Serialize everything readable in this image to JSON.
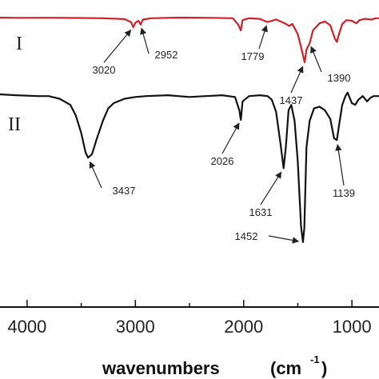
{
  "chart_data": {
    "type": "line",
    "title": "",
    "xlabel": "wavenumbers",
    "xlabel_unit": "(cm",
    "xlabel_unit_sup": "-1",
    "xlabel_unit_close": ")",
    "xlim": [
      4250,
      750
    ],
    "x_reversed": true,
    "y_ticks_shown": false,
    "x_ticks": [
      4000,
      3000,
      2000,
      1000
    ],
    "x_tick_labels": [
      "4000",
      "3000",
      "2000",
      "1000"
    ],
    "series": [
      {
        "name": "I",
        "color": "#d0202a",
        "baseline": 0.0,
        "points": [
          [
            4250,
            0.0
          ],
          [
            4100,
            -0.02
          ],
          [
            3800,
            -0.01
          ],
          [
            3500,
            -0.03
          ],
          [
            3300,
            -0.05
          ],
          [
            3100,
            -0.12
          ],
          [
            3040,
            -0.35
          ],
          [
            3020,
            -0.75
          ],
          [
            3000,
            -0.4
          ],
          [
            2970,
            -0.25
          ],
          [
            2952,
            -0.55
          ],
          [
            2930,
            -0.15
          ],
          [
            2850,
            -0.05
          ],
          [
            2600,
            0.0
          ],
          [
            2300,
            -0.02
          ],
          [
            2100,
            -0.05
          ],
          [
            2050,
            -0.55
          ],
          [
            2026,
            -1.0
          ],
          [
            2010,
            -0.2
          ],
          [
            1950,
            -0.05
          ],
          [
            1850,
            -0.1
          ],
          [
            1779,
            -0.35
          ],
          [
            1740,
            -0.25
          ],
          [
            1700,
            -0.15
          ],
          [
            1620,
            -0.45
          ],
          [
            1580,
            -0.65
          ],
          [
            1550,
            -0.5
          ],
          [
            1500,
            -1.3
          ],
          [
            1470,
            -2.3
          ],
          [
            1437,
            -3.5
          ],
          [
            1420,
            -2.5
          ],
          [
            1390,
            -2.0
          ],
          [
            1360,
            -1.0
          ],
          [
            1300,
            -0.45
          ],
          [
            1250,
            -0.3
          ],
          [
            1200,
            -0.6
          ],
          [
            1160,
            -1.6
          ],
          [
            1140,
            -1.9
          ],
          [
            1120,
            -1.3
          ],
          [
            1090,
            -0.5
          ],
          [
            1050,
            -0.2
          ],
          [
            1000,
            -0.25
          ],
          [
            960,
            -0.45
          ],
          [
            930,
            -0.2
          ],
          [
            880,
            -0.1
          ],
          [
            820,
            -0.15
          ],
          [
            780,
            -0.05
          ],
          [
            750,
            -0.05
          ]
        ]
      },
      {
        "name": "II",
        "color": "#111111",
        "baseline": 0.0,
        "points": [
          [
            4250,
            0.0
          ],
          [
            4100,
            -0.05
          ],
          [
            3900,
            -0.1
          ],
          [
            3800,
            -0.1
          ],
          [
            3700,
            -0.25
          ],
          [
            3600,
            -0.6
          ],
          [
            3550,
            -1.2
          ],
          [
            3500,
            -2.2
          ],
          [
            3460,
            -3.3
          ],
          [
            3437,
            -3.6
          ],
          [
            3400,
            -3.4
          ],
          [
            3360,
            -2.6
          ],
          [
            3300,
            -1.5
          ],
          [
            3250,
            -0.8
          ],
          [
            3200,
            -0.5
          ],
          [
            3100,
            -0.25
          ],
          [
            3000,
            -0.15
          ],
          [
            2900,
            -0.1
          ],
          [
            2700,
            -0.05
          ],
          [
            2500,
            -0.15
          ],
          [
            2350,
            -0.1
          ],
          [
            2200,
            -0.05
          ],
          [
            2080,
            -0.15
          ],
          [
            2040,
            -0.9
          ],
          [
            2026,
            -1.45
          ],
          [
            2010,
            -0.4
          ],
          [
            1950,
            -0.1
          ],
          [
            1850,
            -0.05
          ],
          [
            1779,
            -0.1
          ],
          [
            1740,
            -0.3
          ],
          [
            1700,
            -1.0
          ],
          [
            1660,
            -2.8
          ],
          [
            1631,
            -4.2
          ],
          [
            1610,
            -3.0
          ],
          [
            1585,
            -0.9
          ],
          [
            1560,
            -0.6
          ],
          [
            1530,
            -1.5
          ],
          [
            1500,
            -3.8
          ],
          [
            1470,
            -7.5
          ],
          [
            1452,
            -8.4
          ],
          [
            1440,
            -7.6
          ],
          [
            1420,
            -3.0
          ],
          [
            1390,
            -1.5
          ],
          [
            1350,
            -0.8
          ],
          [
            1300,
            -0.7
          ],
          [
            1250,
            -0.9
          ],
          [
            1200,
            -1.4
          ],
          [
            1165,
            -2.5
          ],
          [
            1139,
            -2.6
          ],
          [
            1120,
            -1.8
          ],
          [
            1090,
            -0.6
          ],
          [
            1060,
            -0.1
          ],
          [
            1040,
            0.1
          ],
          [
            1000,
            -0.5
          ],
          [
            970,
            -0.6
          ],
          [
            940,
            -0.3
          ],
          [
            900,
            -0.1
          ],
          [
            860,
            -0.4
          ],
          [
            830,
            -0.2
          ],
          [
            800,
            -0.1
          ],
          [
            750,
            -0.1
          ]
        ]
      }
    ],
    "annotations": [
      {
        "series": "I",
        "text": "3020",
        "x": 3020
      },
      {
        "series": "I",
        "text": "2952",
        "x": 2952
      },
      {
        "series": "I",
        "text": "1779",
        "x": 1779
      },
      {
        "series": "I",
        "text": "1437",
        "x": 1437
      },
      {
        "series": "I",
        "text": "1390",
        "x": 1390
      },
      {
        "series": "II",
        "text": "3437",
        "x": 3437
      },
      {
        "series": "II",
        "text": "2026",
        "x": 2026
      },
      {
        "series": "II",
        "text": "1631",
        "x": 1631
      },
      {
        "series": "II",
        "text": "1452",
        "x": 1452
      },
      {
        "series": "II",
        "text": "1139",
        "x": 1139
      }
    ]
  }
}
